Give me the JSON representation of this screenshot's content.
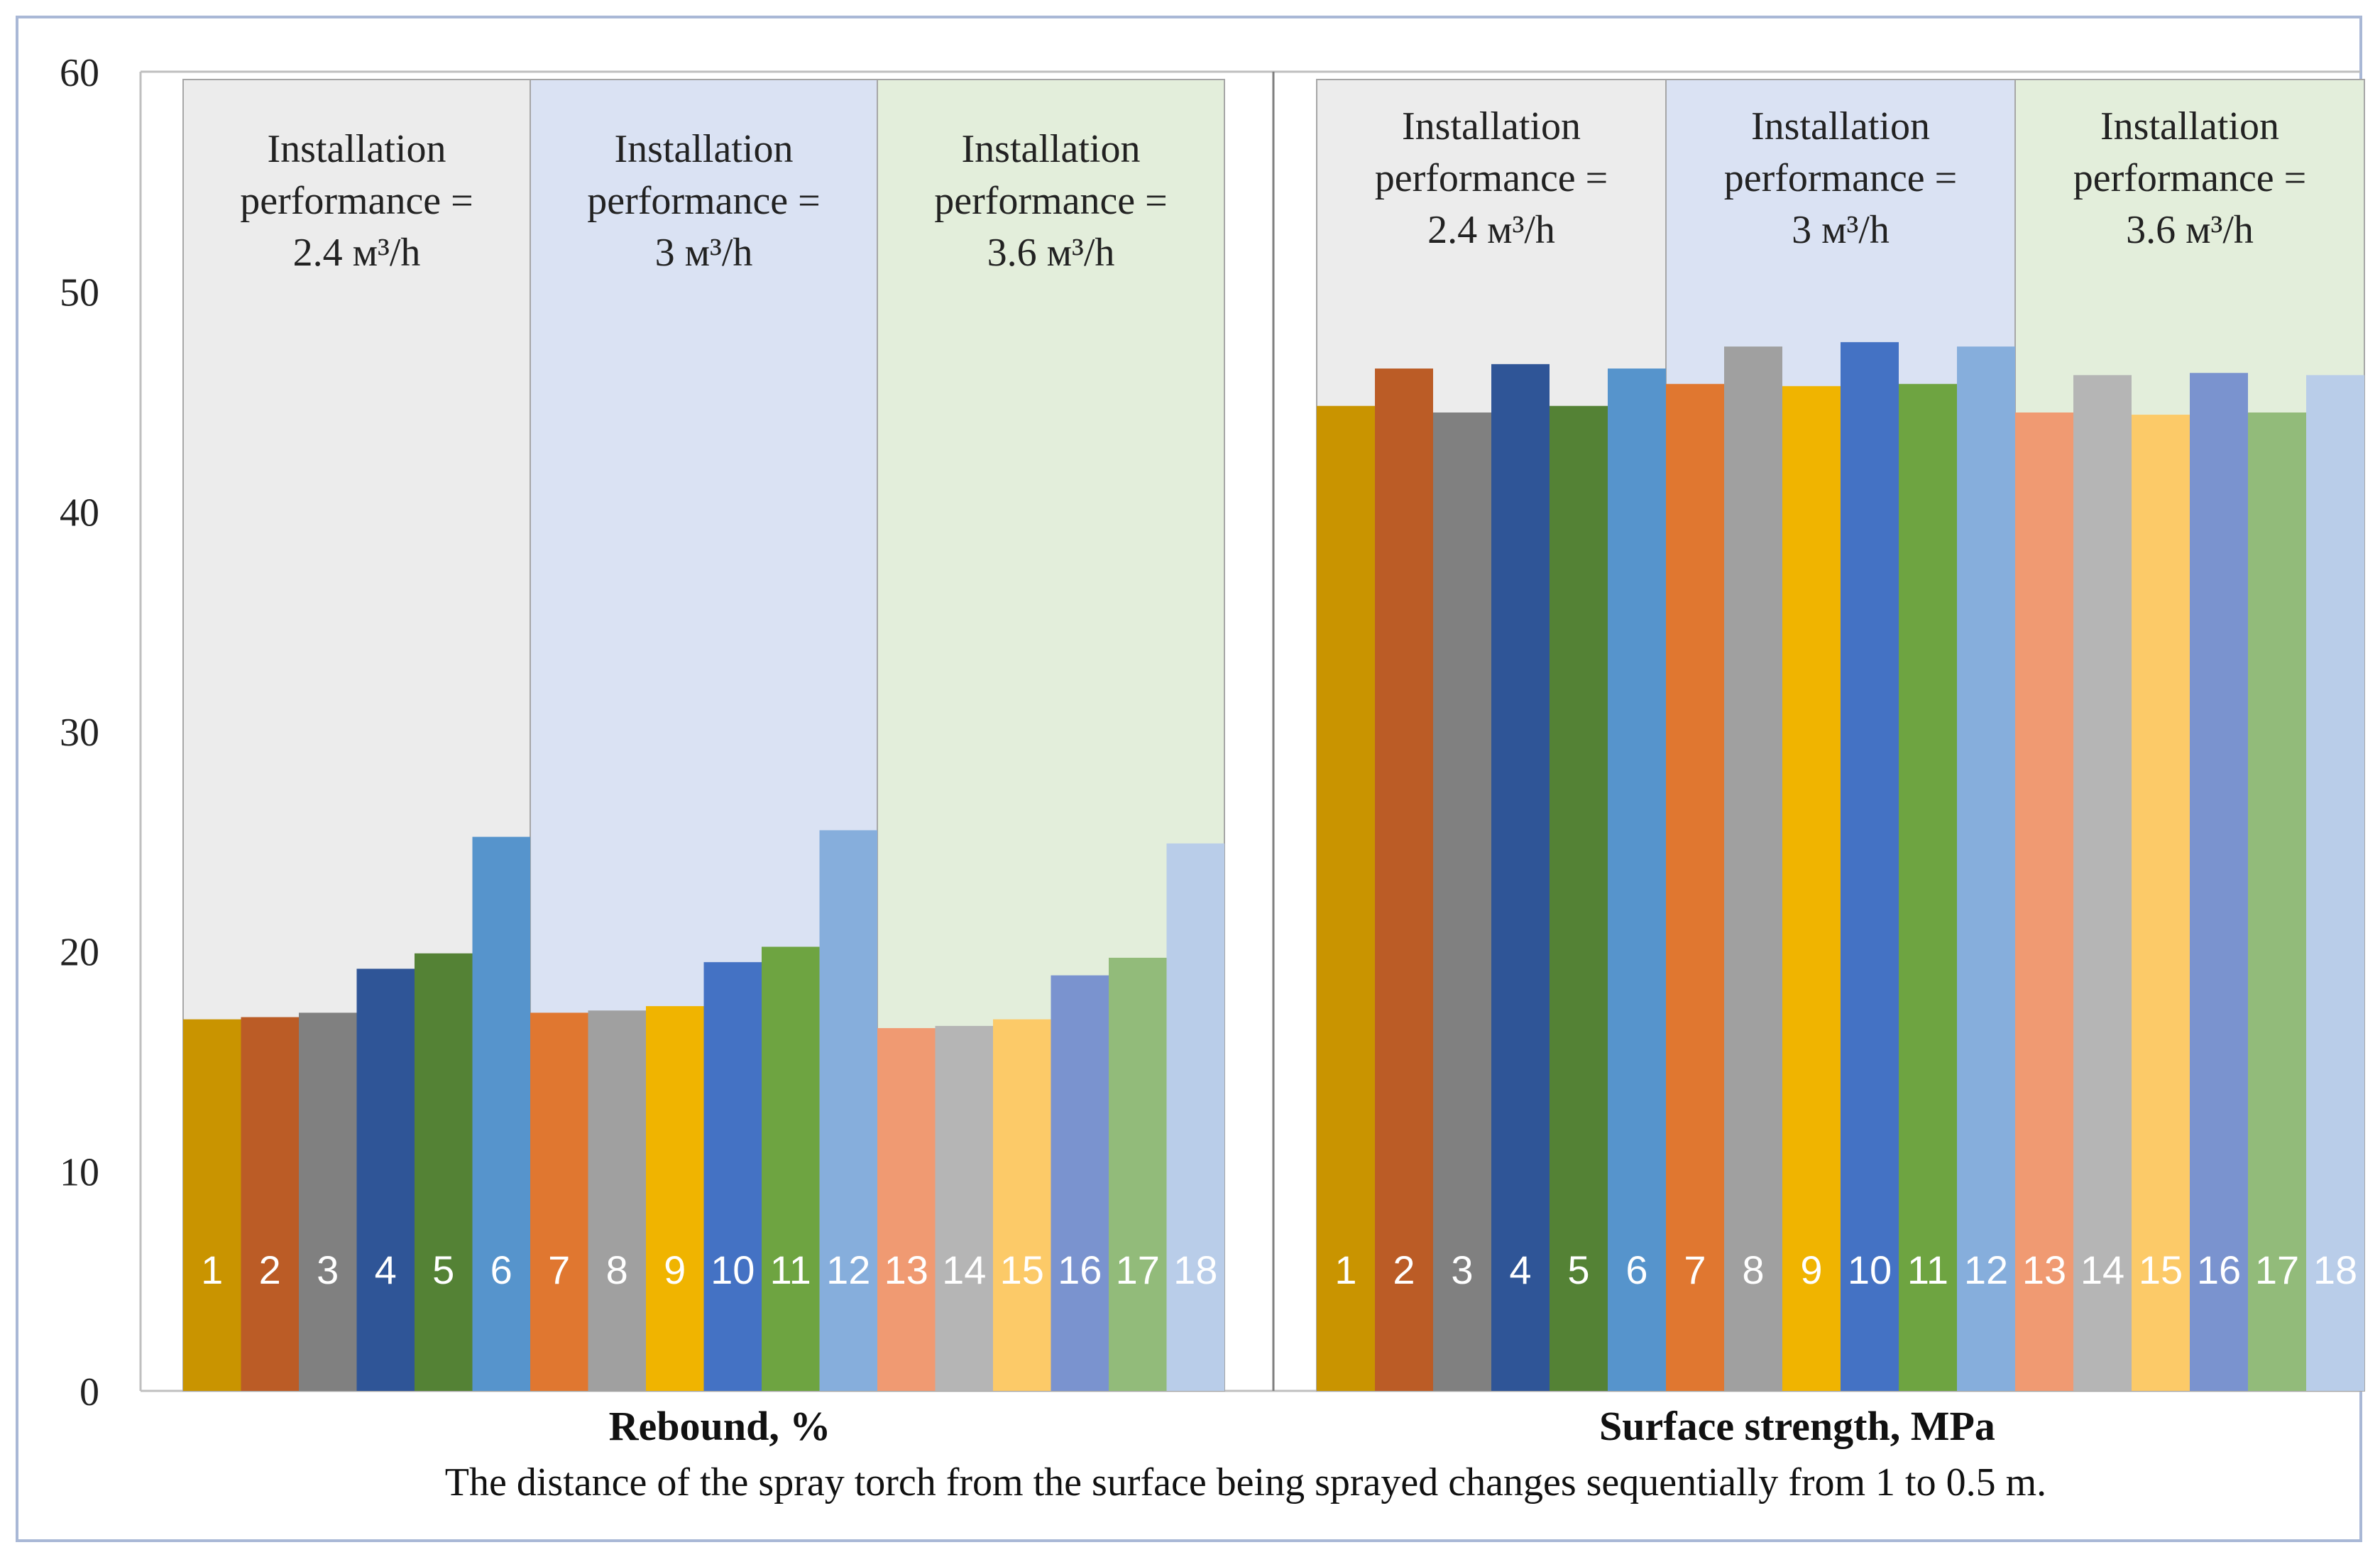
{
  "chart_data": {
    "type": "bar",
    "ylim": [
      0,
      60
    ],
    "yticks": [
      "0",
      "10",
      "20",
      "30",
      "40",
      "50",
      "60"
    ],
    "caption": "The distance of the spray torch from the surface being sprayed changes sequentially from 1 to 0.5 m.",
    "band_labels": [
      [
        "Installation",
        "performance =",
        "2.4 м³/h"
      ],
      [
        "Installation",
        "performance =",
        "3 м³/h"
      ],
      [
        "Installation",
        "performance =",
        "3.6 м³/h"
      ]
    ],
    "band_colors": [
      "#ececec",
      "#dae2f3",
      "#e3eedb"
    ],
    "bar_labels": [
      "1",
      "2",
      "3",
      "4",
      "5",
      "6",
      "7",
      "8",
      "9",
      "10",
      "11",
      "12",
      "13",
      "14",
      "15",
      "16",
      "17",
      "18"
    ],
    "bar_colors": [
      "#c99400",
      "#bb5c26",
      "#808080",
      "#2f5597",
      "#548235",
      "#5694cc",
      "#e07730",
      "#a0a0a0",
      "#f0b400",
      "#4472c4",
      "#6ea441",
      "#86aedc",
      "#f09a72",
      "#b5b5b5",
      "#fcca68",
      "#7a93cf",
      "#92bb7a",
      "#b9cde9"
    ],
    "groups": [
      {
        "title": "Rebound, %",
        "values": [
          16.9,
          17.0,
          17.2,
          19.2,
          19.9,
          25.2,
          17.2,
          17.3,
          17.5,
          19.5,
          20.2,
          25.5,
          16.5,
          16.6,
          16.9,
          18.9,
          19.7,
          24.9
        ]
      },
      {
        "title": "Surface strength, MPa",
        "values": [
          44.8,
          46.5,
          44.5,
          46.7,
          44.8,
          46.5,
          45.8,
          47.5,
          45.7,
          47.7,
          45.8,
          47.5,
          44.5,
          46.2,
          44.4,
          46.3,
          44.5,
          46.2
        ]
      }
    ]
  }
}
